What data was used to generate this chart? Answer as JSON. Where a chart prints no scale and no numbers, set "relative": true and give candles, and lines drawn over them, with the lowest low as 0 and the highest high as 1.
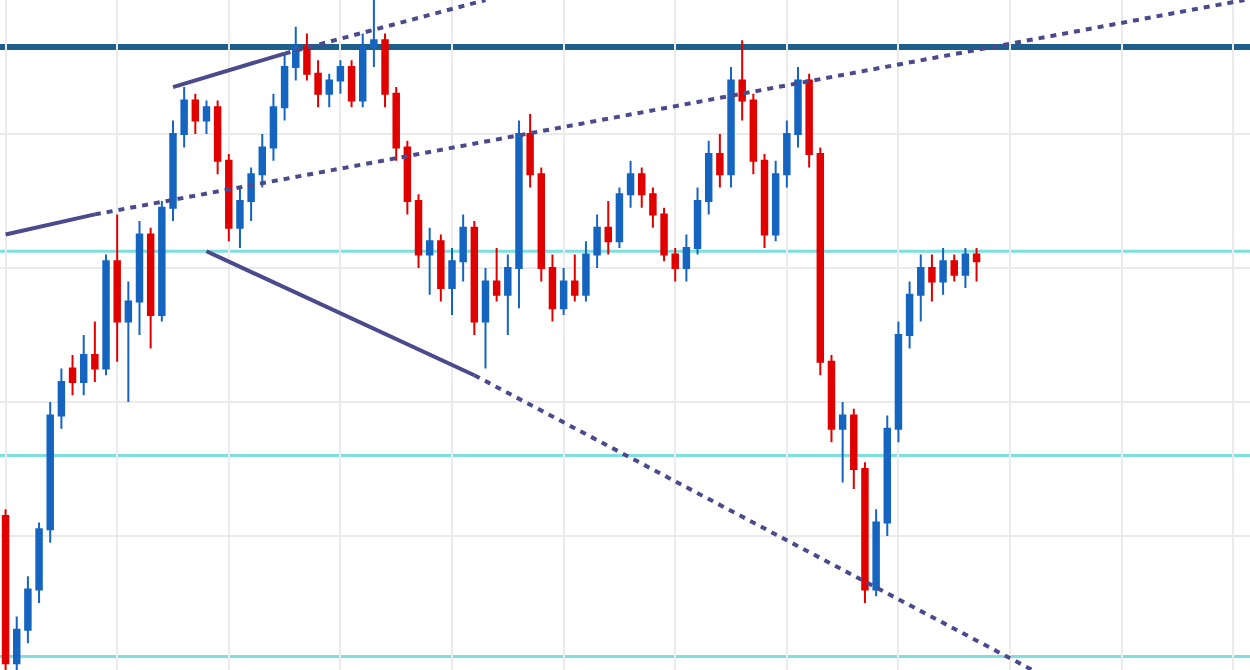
{
  "chart_data": {
    "type": "candlestick",
    "relative": true,
    "grid": true,
    "tick_labels": false,
    "categories": [
      null,
      null,
      null,
      null,
      null,
      null,
      null,
      null,
      null,
      null,
      null,
      null,
      null,
      null,
      null,
      null,
      null,
      null,
      null,
      null,
      null,
      null,
      null,
      null,
      null,
      null,
      null,
      null,
      null,
      null,
      null,
      null,
      null,
      null,
      null,
      null,
      null,
      null,
      null,
      null,
      null,
      null,
      null,
      null,
      null,
      null,
      null,
      null,
      null,
      null,
      null,
      null,
      null,
      null,
      null,
      null,
      null,
      null,
      null,
      null,
      null,
      null,
      null,
      null,
      null,
      null,
      null,
      null,
      null,
      null,
      null,
      null,
      null,
      null,
      null,
      null,
      null,
      null,
      null,
      null,
      null,
      null,
      null,
      null,
      null,
      null,
      null,
      null,
      null,
      null,
      null,
      null,
      null,
      null,
      null,
      null,
      null,
      null,
      null,
      null,
      null,
      null,
      null,
      null,
      null,
      null,
      null,
      null,
      null,
      null,
      null,
      null
    ],
    "colors": [
      "#e00000",
      "#1565c0",
      "#1565c0",
      "#1565c0",
      "#1565c0",
      "#1565c0",
      "#e00000",
      "#1565c0",
      "#e00000",
      "#1565c0",
      "#e00000",
      "#1565c0",
      "#1565c0",
      "#e00000",
      "#1565c0",
      "#1565c0",
      "#1565c0",
      "#e00000",
      "#1565c0",
      "#e00000",
      "#e00000",
      "#1565c0",
      "#1565c0",
      "#1565c0",
      "#1565c0",
      "#1565c0",
      "#1565c0",
      "#e00000",
      "#e00000",
      "#1565c0",
      "#1565c0",
      "#e00000",
      "#1565c0",
      "#1565c0",
      "#e00000",
      "#e00000",
      "#e00000",
      "#e00000",
      "#1565c0",
      "#e00000",
      "#1565c0",
      "#1565c0",
      "#e00000",
      "#1565c0",
      "#e00000",
      "#1565c0",
      "#1565c0",
      "#e00000",
      "#e00000",
      "#e00000",
      "#1565c0",
      "#e00000",
      "#1565c0",
      "#1565c0",
      "#e00000",
      "#1565c0",
      "#1565c0",
      "#e00000",
      "#e00000",
      "#e00000",
      "#e00000",
      "#1565c0",
      "#1565c0",
      "#1565c0",
      "#e00000",
      "#1565c0",
      "#e00000",
      "#e00000",
      "#e00000",
      "#1565c0",
      "#1565c0",
      "#1565c0",
      "#e00000",
      "#e00000",
      "#e00000",
      "#1565c0",
      "#e00000",
      "#e00000",
      "#1565c0",
      "#1565c0",
      "#1565c0",
      "#1565c0",
      "#1565c0",
      "#e00000",
      "#1565c0",
      "#e00000",
      "#1565c0",
      "#e00000",
      null,
      null,
      null,
      null,
      null,
      null,
      null,
      null,
      null,
      null,
      null,
      null,
      null,
      null,
      null,
      null,
      null,
      null,
      null,
      null,
      null,
      null,
      null,
      null
    ],
    "ohlc": [
      [
        0.23,
        0.24,
        0.0,
        0.01
      ],
      [
        0.01,
        0.08,
        0.0,
        0.06
      ],
      [
        0.06,
        0.14,
        0.04,
        0.12
      ],
      [
        0.12,
        0.22,
        0.1,
        0.21
      ],
      [
        0.21,
        0.4,
        0.19,
        0.38
      ],
      [
        0.38,
        0.45,
        0.36,
        0.43
      ],
      [
        0.45,
        0.47,
        0.41,
        0.43
      ],
      [
        0.43,
        0.5,
        0.41,
        0.47
      ],
      [
        0.47,
        0.52,
        0.43,
        0.45
      ],
      [
        0.45,
        0.62,
        0.44,
        0.61
      ],
      [
        0.61,
        0.68,
        0.46,
        0.52
      ],
      [
        0.52,
        0.58,
        0.4,
        0.55
      ],
      [
        0.55,
        0.67,
        0.5,
        0.65
      ],
      [
        0.65,
        0.66,
        0.48,
        0.53
      ],
      [
        0.53,
        0.7,
        0.52,
        0.69
      ],
      [
        0.69,
        0.82,
        0.67,
        0.8
      ],
      [
        0.8,
        0.87,
        0.78,
        0.85
      ],
      [
        0.85,
        0.86,
        0.8,
        0.82
      ],
      [
        0.82,
        0.85,
        0.8,
        0.84
      ],
      [
        0.84,
        0.85,
        0.74,
        0.76
      ],
      [
        0.76,
        0.77,
        0.64,
        0.66
      ],
      [
        0.66,
        0.72,
        0.63,
        0.7
      ],
      [
        0.7,
        0.75,
        0.67,
        0.74
      ],
      [
        0.74,
        0.8,
        0.72,
        0.78
      ],
      [
        0.78,
        0.86,
        0.76,
        0.84
      ],
      [
        0.84,
        0.92,
        0.82,
        0.9
      ],
      [
        0.9,
        0.96,
        0.88,
        0.93
      ],
      [
        0.93,
        0.95,
        0.88,
        0.89
      ],
      [
        0.89,
        0.91,
        0.84,
        0.86
      ],
      [
        0.86,
        0.89,
        0.84,
        0.88
      ],
      [
        0.88,
        0.91,
        0.86,
        0.9
      ],
      [
        0.9,
        0.91,
        0.84,
        0.85
      ],
      [
        0.85,
        0.95,
        0.84,
        0.93
      ],
      [
        0.93,
        1.0,
        0.9,
        0.94
      ],
      [
        0.94,
        0.95,
        0.84,
        0.86
      ],
      [
        0.86,
        0.87,
        0.76,
        0.78
      ],
      [
        0.78,
        0.79,
        0.68,
        0.7
      ],
      [
        0.7,
        0.71,
        0.6,
        0.62
      ],
      [
        0.62,
        0.66,
        0.56,
        0.64
      ],
      [
        0.64,
        0.65,
        0.55,
        0.57
      ],
      [
        0.57,
        0.63,
        0.53,
        0.61
      ],
      [
        0.61,
        0.68,
        0.58,
        0.66
      ],
      [
        0.66,
        0.67,
        0.5,
        0.52
      ],
      [
        0.52,
        0.6,
        0.45,
        0.58
      ],
      [
        0.58,
        0.63,
        0.55,
        0.56
      ],
      [
        0.56,
        0.62,
        0.5,
        0.6
      ],
      [
        0.6,
        0.82,
        0.54,
        0.8
      ],
      [
        0.8,
        0.83,
        0.72,
        0.74
      ],
      [
        0.74,
        0.75,
        0.58,
        0.6
      ],
      [
        0.6,
        0.62,
        0.52,
        0.54
      ],
      [
        0.54,
        0.6,
        0.53,
        0.58
      ],
      [
        0.58,
        0.62,
        0.55,
        0.56
      ],
      [
        0.56,
        0.64,
        0.55,
        0.62
      ],
      [
        0.62,
        0.68,
        0.6,
        0.66
      ],
      [
        0.66,
        0.7,
        0.62,
        0.64
      ],
      [
        0.64,
        0.72,
        0.63,
        0.71
      ],
      [
        0.71,
        0.76,
        0.69,
        0.74
      ],
      [
        0.74,
        0.75,
        0.69,
        0.71
      ],
      [
        0.71,
        0.72,
        0.66,
        0.68
      ],
      [
        0.68,
        0.69,
        0.61,
        0.62
      ],
      [
        0.62,
        0.63,
        0.58,
        0.6
      ],
      [
        0.6,
        0.65,
        0.58,
        0.63
      ],
      [
        0.63,
        0.72,
        0.62,
        0.7
      ],
      [
        0.7,
        0.79,
        0.68,
        0.77
      ],
      [
        0.77,
        0.8,
        0.72,
        0.74
      ],
      [
        0.74,
        0.9,
        0.72,
        0.88
      ],
      [
        0.88,
        0.94,
        0.82,
        0.85
      ],
      [
        0.85,
        0.86,
        0.74,
        0.76
      ],
      [
        0.76,
        0.77,
        0.63,
        0.65
      ],
      [
        0.65,
        0.76,
        0.64,
        0.74
      ],
      [
        0.74,
        0.82,
        0.72,
        0.8
      ],
      [
        0.8,
        0.9,
        0.78,
        0.88
      ],
      [
        0.88,
        0.89,
        0.75,
        0.77
      ],
      [
        0.77,
        0.78,
        0.44,
        0.46
      ],
      [
        0.46,
        0.47,
        0.34,
        0.36
      ],
      [
        0.36,
        0.4,
        0.28,
        0.38
      ],
      [
        0.38,
        0.39,
        0.27,
        0.3
      ],
      [
        0.3,
        0.31,
        0.1,
        0.12
      ],
      [
        0.12,
        0.24,
        0.11,
        0.22
      ],
      [
        0.22,
        0.38,
        0.2,
        0.36
      ],
      [
        0.36,
        0.52,
        0.34,
        0.5
      ],
      [
        0.5,
        0.58,
        0.48,
        0.56
      ],
      [
        0.56,
        0.62,
        0.52,
        0.6
      ],
      [
        0.6,
        0.62,
        0.55,
        0.58
      ],
      [
        0.58,
        0.63,
        0.56,
        0.61
      ],
      [
        0.61,
        0.62,
        0.58,
        0.59
      ],
      [
        0.59,
        0.63,
        0.57,
        0.62
      ],
      [
        0.62,
        0.63,
        0.58,
        0.61
      ],
      null,
      null,
      null,
      null,
      null,
      null,
      null,
      null,
      null,
      null,
      null,
      null,
      null,
      null,
      null,
      null,
      null,
      null,
      null,
      null,
      null,
      null,
      null,
      null
    ],
    "series": [
      {
        "type": "line",
        "line_style": "solid",
        "color": "#4a4a8c",
        "values": [
          0.65,
          null,
          null,
          null,
          null,
          null,
          null,
          null,
          0.68,
          null,
          null,
          null,
          null,
          null,
          null,
          null,
          null,
          null,
          null,
          null,
          null,
          null,
          null,
          null,
          null,
          null,
          null,
          null,
          null,
          null,
          null,
          null,
          null,
          null,
          null,
          null,
          null,
          null,
          null,
          null,
          null,
          null,
          null,
          null,
          null,
          null,
          null,
          null,
          null,
          null,
          null,
          null,
          null,
          null,
          null,
          null,
          null,
          null,
          null,
          null,
          null,
          null,
          null,
          null,
          null,
          null,
          null,
          null,
          null,
          null,
          null,
          null,
          null,
          null,
          null,
          null,
          null,
          null,
          null,
          null,
          null,
          null,
          null,
          null,
          null,
          null,
          null,
          null,
          null,
          null,
          null,
          null,
          null,
          null,
          null,
          null,
          null,
          null,
          null,
          null,
          null,
          null,
          null,
          null,
          null,
          null,
          null,
          null,
          null,
          null,
          null,
          null
        ]
      },
      {
        "type": "line",
        "line_style": "dotted",
        "color": "#4a4a8c",
        "values": [
          null,
          null,
          null,
          null,
          null,
          null,
          null,
          null,
          0.68,
          null,
          null,
          null,
          null,
          null,
          null,
          null,
          null,
          null,
          null,
          null,
          null,
          null,
          null,
          null,
          null,
          null,
          null,
          null,
          null,
          null,
          null,
          null,
          null,
          null,
          null,
          null,
          null,
          null,
          null,
          null,
          null,
          null,
          null,
          null,
          null,
          null,
          null,
          null,
          null,
          null,
          null,
          null,
          null,
          null,
          null,
          null,
          null,
          null,
          null,
          null,
          null,
          null,
          null,
          null,
          null,
          null,
          null,
          null,
          null,
          null,
          null,
          null,
          null,
          null,
          null,
          null,
          null,
          null,
          null,
          null,
          null,
          null,
          null,
          null,
          null,
          null,
          null,
          null,
          null,
          null,
          null,
          null,
          null,
          null,
          null,
          null,
          null,
          null,
          null,
          null,
          null,
          null,
          null,
          null,
          null,
          null,
          null,
          null,
          null,
          null,
          null,
          1.0
        ]
      },
      {
        "type": "line",
        "line_style": "solid",
        "color": "#4a4a8c",
        "values": [
          null,
          null,
          null,
          null,
          null,
          null,
          null,
          null,
          null,
          null,
          null,
          null,
          null,
          null,
          null,
          0.87,
          null,
          null,
          null,
          null,
          null,
          null,
          null,
          null,
          null,
          0.92,
          null,
          null,
          null,
          null,
          null,
          null,
          null,
          null,
          null,
          null,
          null,
          null,
          null,
          null,
          null,
          null,
          null,
          null,
          null,
          null,
          null,
          null,
          null,
          null,
          null,
          null,
          null,
          null,
          null,
          null,
          null,
          null,
          null,
          null,
          null,
          null,
          null,
          null,
          null,
          null,
          null,
          null,
          null,
          null,
          null,
          null,
          null,
          null,
          null,
          null,
          null,
          null,
          null,
          null,
          null,
          null,
          null,
          null,
          null,
          null,
          null,
          null,
          null,
          null,
          null,
          null,
          null,
          null,
          null,
          null,
          null,
          null,
          null,
          null,
          null,
          null,
          null,
          null,
          null,
          null,
          null,
          null,
          null,
          null,
          null,
          null
        ]
      },
      {
        "type": "line",
        "line_style": "dotted",
        "color": "#4a4a8c",
        "values": [
          null,
          null,
          null,
          null,
          null,
          null,
          null,
          null,
          null,
          null,
          null,
          null,
          null,
          null,
          null,
          null,
          null,
          null,
          null,
          null,
          null,
          null,
          null,
          null,
          null,
          0.92,
          null,
          null,
          null,
          null,
          null,
          null,
          null,
          null,
          null,
          null,
          null,
          null,
          null,
          null,
          null,
          null,
          null,
          1.0,
          null,
          null,
          null,
          null,
          null,
          null,
          null,
          null,
          null,
          null,
          null,
          null,
          null,
          null,
          null,
          null,
          null,
          null,
          null,
          null,
          null,
          null,
          null,
          null,
          null,
          null,
          null,
          null,
          null,
          null,
          null,
          null,
          null,
          null,
          null,
          null,
          null,
          null,
          null,
          null,
          null,
          null,
          null,
          null,
          null,
          null,
          null,
          null,
          null,
          null,
          null,
          null,
          null,
          null,
          null,
          null,
          null,
          null,
          null,
          null,
          null,
          null,
          null,
          null,
          null,
          null,
          null,
          null
        ]
      },
      {
        "type": "line",
        "line_style": "solid",
        "color": "#4a4a8c",
        "values": [
          null,
          null,
          null,
          null,
          null,
          null,
          null,
          null,
          null,
          null,
          null,
          null,
          null,
          null,
          null,
          null,
          null,
          null,
          0.625,
          null,
          null,
          null,
          null,
          null,
          null,
          null,
          null,
          null,
          null,
          null,
          null,
          null,
          null,
          null,
          null,
          null,
          null,
          null,
          null,
          null,
          null,
          null,
          0.44,
          null,
          null,
          null,
          null,
          null,
          null,
          null,
          null,
          null,
          null,
          null,
          null,
          null,
          null,
          null,
          null,
          null,
          null,
          null,
          null,
          null,
          null,
          null,
          null,
          null,
          null,
          null,
          null,
          null,
          null,
          null,
          null,
          null,
          null,
          null,
          null,
          null,
          null,
          null,
          null,
          null,
          null,
          null,
          null,
          null,
          null,
          null,
          null,
          null,
          null,
          null,
          null,
          null,
          null,
          null,
          null,
          null,
          null,
          null,
          null,
          null,
          null,
          null,
          null,
          null,
          null,
          null,
          null,
          null
        ]
      },
      {
        "type": "line",
        "line_style": "dotted",
        "color": "#4a4a8c",
        "values": [
          null,
          null,
          null,
          null,
          null,
          null,
          null,
          null,
          null,
          null,
          null,
          null,
          null,
          null,
          null,
          null,
          null,
          null,
          null,
          null,
          null,
          null,
          null,
          null,
          null,
          null,
          null,
          null,
          null,
          null,
          null,
          null,
          null,
          null,
          null,
          null,
          null,
          null,
          null,
          null,
          null,
          null,
          0.44,
          null,
          null,
          null,
          null,
          null,
          null,
          null,
          null,
          null,
          null,
          null,
          null,
          null,
          null,
          null,
          null,
          null,
          null,
          null,
          null,
          null,
          null,
          null,
          null,
          null,
          null,
          null,
          null,
          null,
          null,
          null,
          null,
          null,
          null,
          null,
          null,
          null,
          null,
          null,
          null,
          null,
          null,
          null,
          null,
          null,
          null,
          null,
          null,
          null,
          0.0,
          null,
          null,
          null,
          null,
          null,
          null,
          null,
          null,
          null,
          null,
          null,
          null,
          null,
          null,
          null,
          null,
          null,
          null,
          null
        ]
      }
    ],
    "ref_lines": [
      {
        "axis": "y",
        "value": 0.93,
        "color": "#1f5f8b"
      },
      {
        "axis": "y",
        "value": 0.625,
        "color": "#7fdede"
      },
      {
        "axis": "y",
        "value": 0.32,
        "color": "#7fdede"
      },
      {
        "axis": "y",
        "value": 0.02,
        "color": "#7fdede"
      }
    ]
  }
}
